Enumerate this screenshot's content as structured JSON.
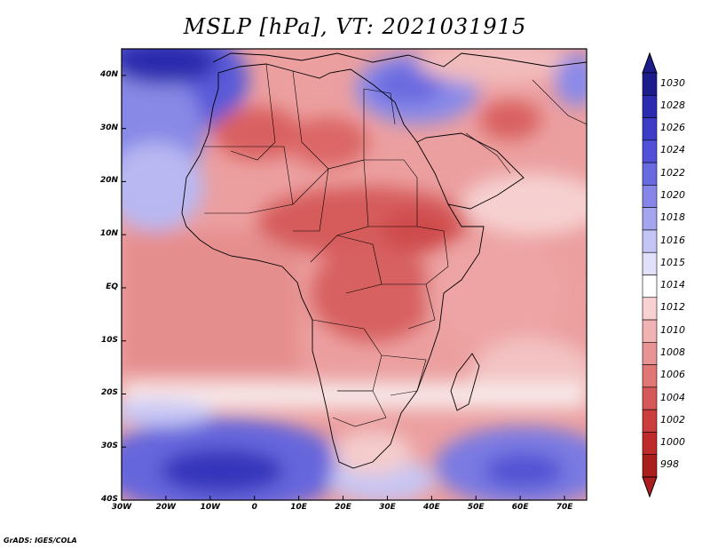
{
  "title": "MSLP [hPa], VT: 2021031915",
  "footer": "GrADS: IGES/COLA",
  "map": {
    "lon_range": [
      -30,
      75
    ],
    "lat_range": [
      -40,
      45
    ],
    "lat_ticks": [
      {
        "value": 40,
        "label": "40N"
      },
      {
        "value": 30,
        "label": "30N"
      },
      {
        "value": 20,
        "label": "20N"
      },
      {
        "value": 10,
        "label": "10N"
      },
      {
        "value": 0,
        "label": "EQ"
      },
      {
        "value": -10,
        "label": "10S"
      },
      {
        "value": -20,
        "label": "20S"
      },
      {
        "value": -30,
        "label": "30S"
      },
      {
        "value": -40,
        "label": "40S"
      }
    ],
    "lon_ticks": [
      {
        "value": -30,
        "label": "30W"
      },
      {
        "value": -20,
        "label": "20W"
      },
      {
        "value": -10,
        "label": "10W"
      },
      {
        "value": 0,
        "label": "0"
      },
      {
        "value": 10,
        "label": "10E"
      },
      {
        "value": 20,
        "label": "20E"
      },
      {
        "value": 30,
        "label": "30E"
      },
      {
        "value": 40,
        "label": "40E"
      },
      {
        "value": 50,
        "label": "50E"
      },
      {
        "value": 60,
        "label": "60E"
      },
      {
        "value": 70,
        "label": "70E"
      }
    ]
  },
  "colorbar": {
    "levels": [
      "1030",
      "1028",
      "1026",
      "1024",
      "1022",
      "1020",
      "1018",
      "1016",
      "1015",
      "1014",
      "1012",
      "1010",
      "1008",
      "1006",
      "1004",
      "1002",
      "1000",
      "998"
    ],
    "colors": [
      "#1c1c8c",
      "#2b2bb0",
      "#3c3cc8",
      "#5050d8",
      "#6a6ae0",
      "#8686e8",
      "#a4a4ef",
      "#c4c4f5",
      "#e0e0fa",
      "#ffffff",
      "#f8d2d2",
      "#f0b2b2",
      "#e99494",
      "#e07676",
      "#d65858",
      "#cc3d3d",
      "#bf2a2a",
      "#aa1e1e"
    ]
  }
}
